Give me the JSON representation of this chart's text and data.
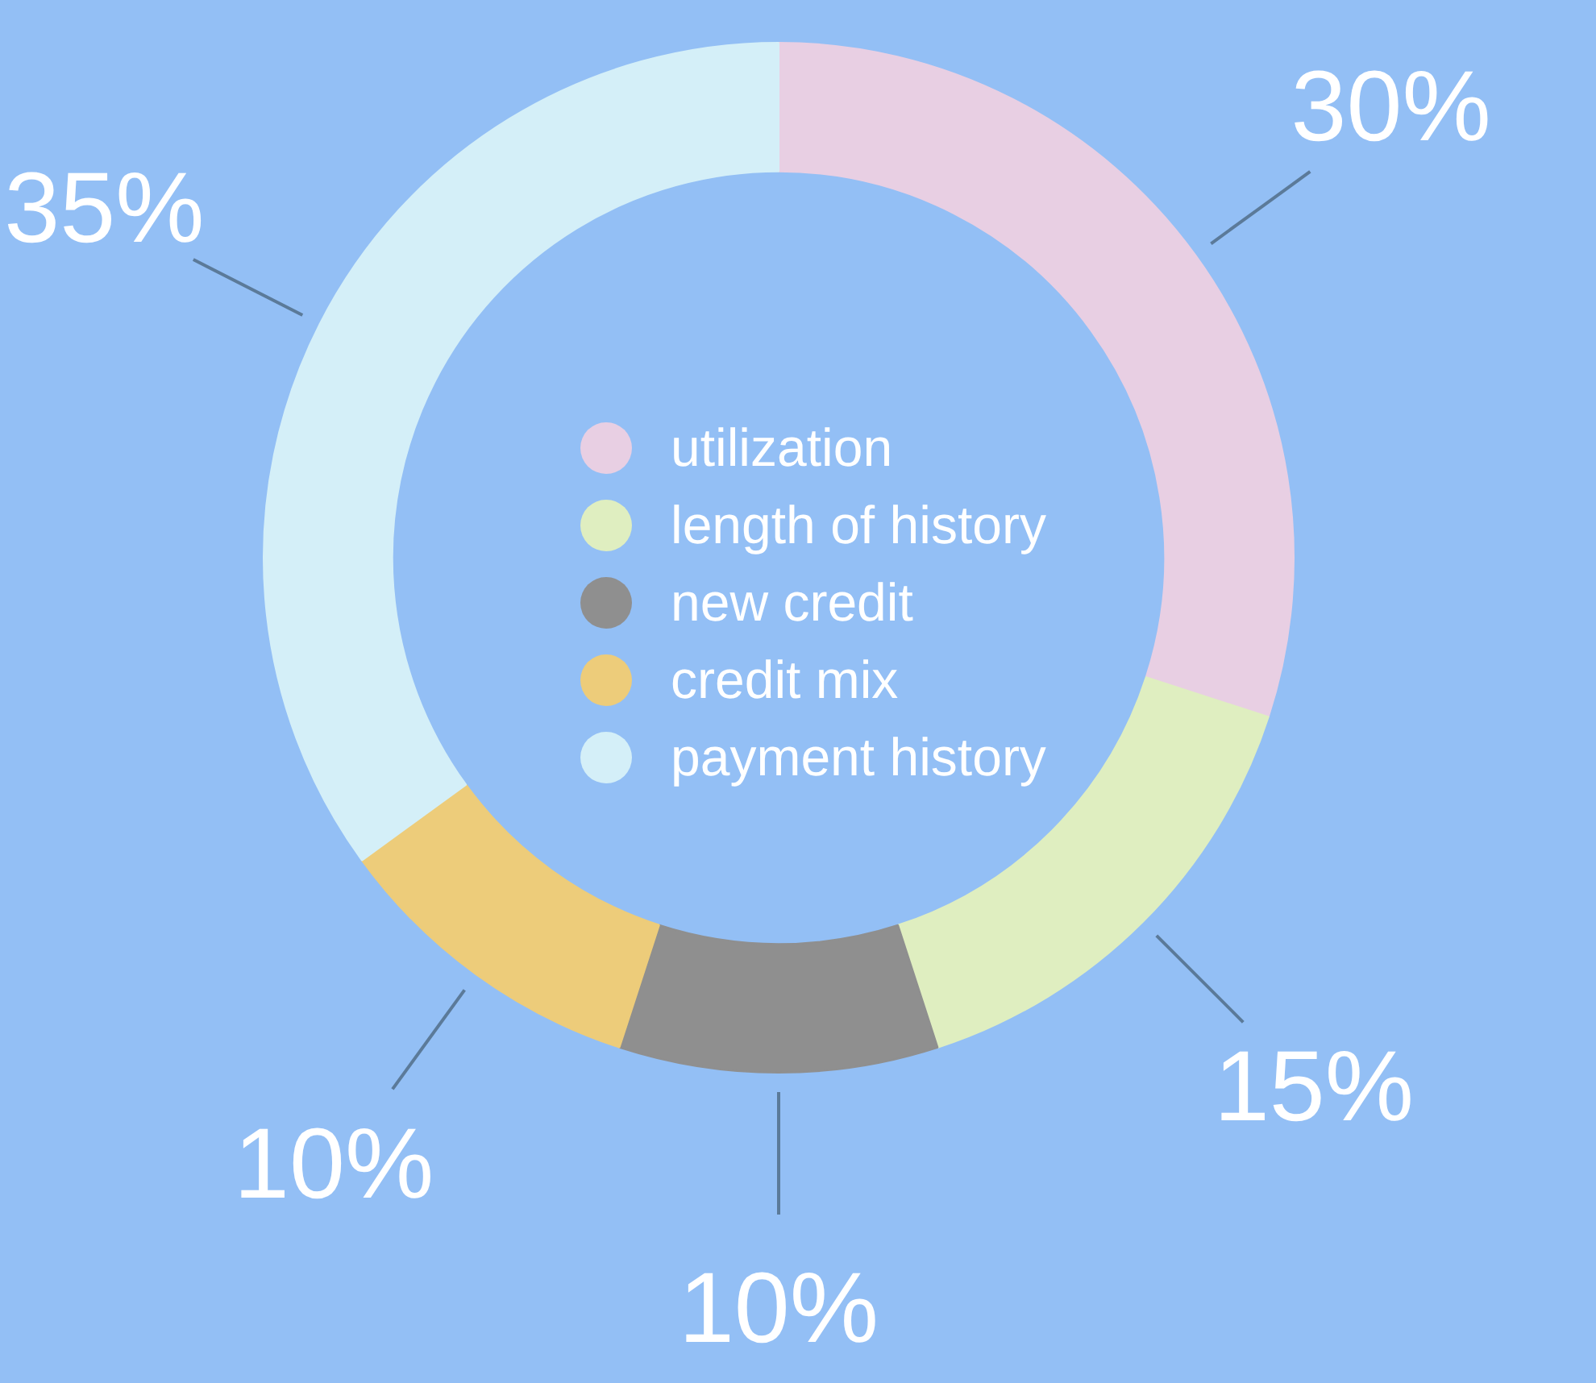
{
  "chart_data": {
    "type": "donut",
    "categories": [
      "utilization",
      "length of history",
      "new credit",
      "credit mix",
      "payment history"
    ],
    "values": [
      30,
      15,
      10,
      10,
      35
    ],
    "colors": [
      "#e8cfe3",
      "#dfeec0",
      "#8f8f8f",
      "#edcc7a",
      "#d4eff8"
    ],
    "value_labels": [
      "30%",
      "15%",
      "10%",
      "10%",
      "35%"
    ],
    "legend": "center"
  }
}
